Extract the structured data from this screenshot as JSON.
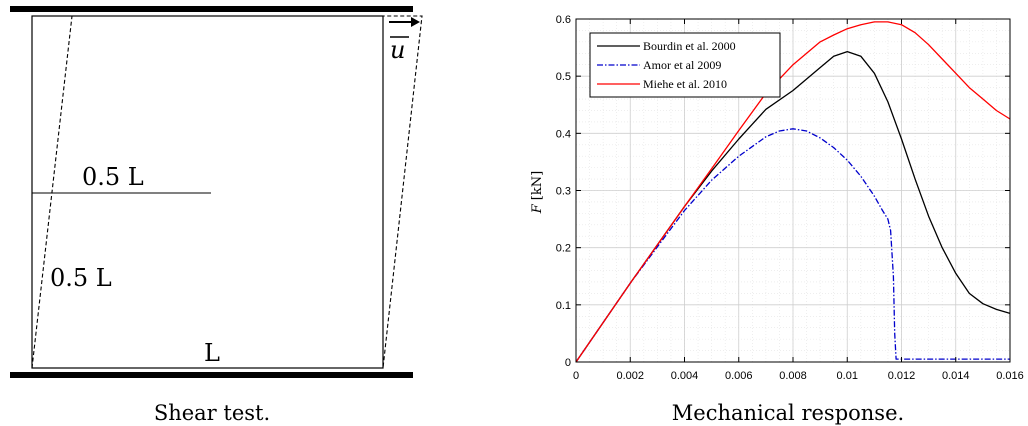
{
  "left_figure": {
    "labels": {
      "half_length_top": "0.5 L",
      "half_length_left": "0.5 L",
      "length": "L",
      "displacement": "u"
    },
    "caption": "Shear test."
  },
  "right_figure": {
    "caption": "Mechanical response."
  },
  "chart_data": {
    "type": "line",
    "xlabel": "",
    "ylabel": "F [kN]",
    "xlim": [
      0,
      0.016
    ],
    "ylim": [
      0,
      0.6
    ],
    "xticks": [
      "0",
      "0.002",
      "0.004",
      "0.006",
      "0.008",
      "0.01",
      "0.012",
      "0.014",
      "0.016"
    ],
    "yticks": [
      "0",
      "0.1",
      "0.2",
      "0.3",
      "0.4",
      "0.5",
      "0.6"
    ],
    "grid": "on",
    "legend_placement": "top-left",
    "series": [
      {
        "name": "Bourdin et al. 2000",
        "color": "#000000",
        "style": "solid",
        "x": [
          0,
          0.002,
          0.004,
          0.005,
          0.006,
          0.007,
          0.008,
          0.009,
          0.0095,
          0.01,
          0.0105,
          0.011,
          0.0115,
          0.012,
          0.0125,
          0.013,
          0.0135,
          0.014,
          0.0145,
          0.015,
          0.0155,
          0.016
        ],
        "y": [
          0,
          0.138,
          0.272,
          0.334,
          0.39,
          0.442,
          0.475,
          0.515,
          0.535,
          0.543,
          0.535,
          0.505,
          0.455,
          0.39,
          0.32,
          0.255,
          0.2,
          0.155,
          0.12,
          0.102,
          0.092,
          0.085
        ]
      },
      {
        "name": "Amor et al 2009",
        "color": "#0000cc",
        "style": "dashdot",
        "x": [
          0,
          0.002,
          0.004,
          0.005,
          0.006,
          0.007,
          0.0075,
          0.008,
          0.0085,
          0.009,
          0.0095,
          0.01,
          0.0105,
          0.011,
          0.0113,
          0.0115,
          0.0116,
          0.0117,
          0.01175,
          0.0118,
          0.012,
          0.014,
          0.016
        ],
        "y": [
          0,
          0.138,
          0.265,
          0.318,
          0.36,
          0.394,
          0.404,
          0.408,
          0.404,
          0.392,
          0.375,
          0.353,
          0.325,
          0.29,
          0.265,
          0.25,
          0.23,
          0.15,
          0.05,
          0.005,
          0.005,
          0.005,
          0.005
        ]
      },
      {
        "name": "Miehe et al. 2010",
        "color": "#ff0000",
        "style": "solid",
        "x": [
          0,
          0.002,
          0.004,
          0.005,
          0.006,
          0.007,
          0.008,
          0.009,
          0.0095,
          0.01,
          0.0105,
          0.011,
          0.0115,
          0.012,
          0.0125,
          0.013,
          0.0135,
          0.014,
          0.0145,
          0.015,
          0.0155,
          0.016
        ],
        "y": [
          0,
          0.138,
          0.272,
          0.338,
          0.405,
          0.47,
          0.52,
          0.56,
          0.572,
          0.583,
          0.59,
          0.595,
          0.595,
          0.59,
          0.576,
          0.555,
          0.53,
          0.505,
          0.48,
          0.46,
          0.44,
          0.425
        ]
      }
    ]
  }
}
